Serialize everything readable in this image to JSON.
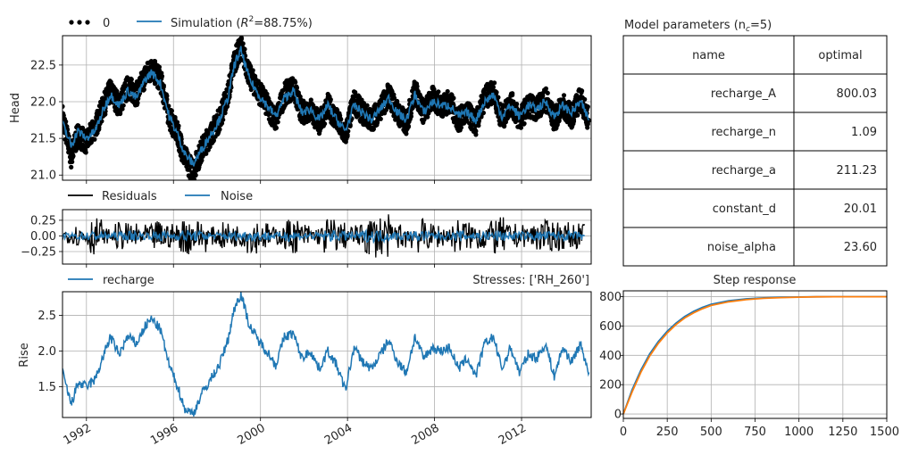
{
  "colors": {
    "observed": "#000000",
    "simulation": "#1f77b4",
    "residuals": "#000000",
    "noise": "#1f77b4",
    "recharge": "#1f77b4",
    "step_blue": "#1f77b4",
    "step_orange": "#ff7f0e",
    "grid": "#b0b0b0"
  },
  "params_table": {
    "title": "Model parameters (n",
    "title_sub": "c",
    "title_tail": "=5)",
    "header": [
      "name",
      "optimal"
    ],
    "rows": [
      [
        "recharge_A",
        "800.03"
      ],
      [
        "recharge_n",
        "1.09"
      ],
      [
        "recharge_a",
        "211.23"
      ],
      [
        "constant_d",
        "20.01"
      ],
      [
        "noise_alpha",
        "23.60"
      ]
    ]
  },
  "stresses_label": "Stresses: ['RH_260']",
  "chart_data": [
    {
      "id": "head",
      "type": "line",
      "xlabel": "",
      "ylabel": "Head",
      "xlim": [
        1990.9,
        2015.2
      ],
      "ylim": [
        20.93,
        22.9
      ],
      "yticks": [
        21.0,
        21.5,
        22.0,
        22.5
      ],
      "ytick_labels": [
        "21.0",
        "21.5",
        "22.0",
        "22.5"
      ],
      "grid": true,
      "legend": "top-left outside",
      "series": [
        {
          "name": "0",
          "style": "dots",
          "color": "#000000",
          "x": [
            1990.9,
            1991.3,
            1991.6,
            1992.0,
            1992.4,
            1992.8,
            1993.1,
            1993.5,
            1993.9,
            1994.3,
            1994.7,
            1995.0,
            1995.4,
            1995.8,
            1996.2,
            1996.5,
            1996.9,
            1997.3,
            1997.7,
            1998.1,
            1998.5,
            1998.8,
            1999.1,
            1999.5,
            1999.9,
            2000.3,
            2000.7,
            2001.1,
            2001.5,
            2001.9,
            2002.3,
            2002.7,
            2003.1,
            2003.5,
            2003.9,
            2004.3,
            2004.7,
            2005.1,
            2005.5,
            2005.9,
            2006.3,
            2006.7,
            2007.1,
            2007.5,
            2007.9,
            2008.3,
            2008.7,
            2009.1,
            2009.5,
            2009.9,
            2010.3,
            2010.7,
            2011.1,
            2011.5,
            2011.9,
            2012.3,
            2012.7,
            2013.1,
            2013.5,
            2013.9,
            2014.3,
            2014.7,
            2015.1
          ],
          "y": [
            21.8,
            21.25,
            21.55,
            21.45,
            21.65,
            21.95,
            22.15,
            21.95,
            22.2,
            22.1,
            22.35,
            22.45,
            22.3,
            21.8,
            21.55,
            21.25,
            21.05,
            21.35,
            21.55,
            21.75,
            22.1,
            22.55,
            22.75,
            22.35,
            22.15,
            21.95,
            21.75,
            22.1,
            22.2,
            21.85,
            21.9,
            21.7,
            21.95,
            21.75,
            21.55,
            22.0,
            21.85,
            21.75,
            21.9,
            22.1,
            21.85,
            21.7,
            22.15,
            21.85,
            22.05,
            21.95,
            22.0,
            21.75,
            21.85,
            21.7,
            22.05,
            22.15,
            21.75,
            22.0,
            21.75,
            21.95,
            21.9,
            22.05,
            21.75,
            21.95,
            21.8,
            22.05,
            21.75
          ]
        },
        {
          "name": "Simulation (R²=88.75%)",
          "style": "line",
          "color": "#1f77b4",
          "x": [
            1990.9,
            1991.3,
            1991.6,
            1992.0,
            1992.4,
            1992.8,
            1993.1,
            1993.5,
            1993.9,
            1994.3,
            1994.7,
            1995.0,
            1995.4,
            1995.8,
            1996.2,
            1996.5,
            1996.9,
            1997.3,
            1997.7,
            1998.1,
            1998.5,
            1998.8,
            1999.1,
            1999.5,
            1999.9,
            2000.3,
            2000.7,
            2001.1,
            2001.5,
            2001.9,
            2002.3,
            2002.7,
            2003.1,
            2003.5,
            2003.9,
            2004.3,
            2004.7,
            2005.1,
            2005.5,
            2005.9,
            2006.3,
            2006.7,
            2007.1,
            2007.5,
            2007.9,
            2008.3,
            2008.7,
            2009.1,
            2009.5,
            2009.9,
            2010.3,
            2010.7,
            2011.1,
            2011.5,
            2011.9,
            2012.3,
            2012.7,
            2013.1,
            2013.5,
            2013.9,
            2014.3,
            2014.7,
            2015.1
          ],
          "y": [
            21.7,
            21.4,
            21.6,
            21.5,
            21.6,
            21.9,
            22.1,
            21.95,
            22.15,
            22.05,
            22.3,
            22.4,
            22.25,
            21.8,
            21.55,
            21.3,
            21.15,
            21.35,
            21.55,
            21.75,
            22.05,
            22.5,
            22.7,
            22.3,
            22.1,
            21.95,
            21.8,
            22.05,
            22.15,
            21.85,
            21.9,
            21.75,
            21.95,
            21.75,
            21.6,
            21.95,
            21.85,
            21.75,
            21.9,
            22.05,
            21.85,
            21.75,
            22.1,
            21.85,
            22.0,
            21.95,
            21.95,
            21.8,
            21.85,
            21.75,
            22.0,
            22.1,
            21.8,
            21.95,
            21.8,
            21.95,
            21.9,
            22.0,
            21.8,
            21.95,
            21.85,
            22.0,
            21.75
          ]
        }
      ]
    },
    {
      "id": "residuals",
      "type": "line",
      "xlabel": "",
      "ylabel": "",
      "xlim": [
        1990.9,
        2015.2
      ],
      "ylim": [
        -0.45,
        0.42
      ],
      "yticks": [
        -0.25,
        0.0,
        0.25
      ],
      "ytick_labels": [
        "−0.25",
        "0.00",
        "0.25"
      ],
      "grid": true,
      "legend": "top-left outside",
      "series": [
        {
          "name": "Residuals",
          "color": "#000000",
          "x": [
            1990.9,
            1991.5,
            1992.1,
            1992.7,
            1993.3,
            1993.9,
            1994.5,
            1995.1,
            1995.7,
            1996.3,
            1996.9,
            1997.5,
            1998.1,
            1998.7,
            1999.3,
            1999.9,
            2000.5,
            2001.1,
            2001.7,
            2002.3,
            2002.9,
            2003.5,
            2004.1,
            2004.7,
            2005.3,
            2005.9,
            2006.5,
            2007.1,
            2007.7,
            2008.3,
            2008.9,
            2009.5,
            2010.1,
            2010.7,
            2011.3,
            2011.9,
            2012.5,
            2013.1,
            2013.7,
            2014.3,
            2014.9
          ],
          "y": [
            0.12,
            -0.18,
            0.3,
            -0.12,
            0.22,
            -0.2,
            0.18,
            -0.25,
            0.2,
            -0.3,
            0.26,
            -0.15,
            0.22,
            -0.18,
            0.28,
            -0.22,
            0.15,
            -0.28,
            0.2,
            -0.15,
            0.3,
            -0.22,
            0.18,
            -0.32,
            0.35,
            -0.2,
            0.22,
            -0.28,
            0.2,
            -0.18,
            0.28,
            -0.22,
            0.24,
            -0.3,
            0.2,
            -0.18,
            0.25,
            -0.25,
            0.22,
            -0.2,
            0.1
          ]
        },
        {
          "name": "Noise",
          "color": "#1f77b4",
          "x": [
            1990.9,
            1991.5,
            1992.1,
            1992.7,
            1993.3,
            1993.9,
            1994.5,
            1995.1,
            1995.7,
            1996.3,
            1996.9,
            1997.5,
            1998.1,
            1998.7,
            1999.3,
            1999.9,
            2000.5,
            2001.1,
            2001.7,
            2002.3,
            2002.9,
            2003.5,
            2004.1,
            2004.7,
            2005.3,
            2005.9,
            2006.5,
            2007.1,
            2007.7,
            2008.3,
            2008.9,
            2009.5,
            2010.1,
            2010.7,
            2011.3,
            2011.9,
            2012.5,
            2013.1,
            2013.7,
            2014.3,
            2014.9
          ],
          "y": [
            0.05,
            -0.07,
            0.08,
            -0.06,
            0.07,
            -0.08,
            0.06,
            -0.09,
            0.07,
            -0.1,
            0.08,
            -0.06,
            0.07,
            -0.07,
            0.09,
            -0.08,
            0.06,
            -0.09,
            0.07,
            -0.06,
            0.09,
            -0.08,
            0.07,
            -0.1,
            0.1,
            -0.07,
            0.08,
            -0.09,
            0.07,
            -0.06,
            0.09,
            -0.08,
            0.08,
            -0.09,
            0.07,
            -0.07,
            0.08,
            -0.08,
            0.08,
            -0.07,
            0.04
          ]
        }
      ]
    },
    {
      "id": "recharge",
      "type": "line",
      "xlabel": "",
      "ylabel": "Rise",
      "xlim": [
        1990.9,
        2015.2
      ],
      "ylim": [
        1.07,
        2.83
      ],
      "yticks": [
        1.5,
        2.0,
        2.5
      ],
      "ytick_labels": [
        "1.5",
        "2.0",
        "2.5"
      ],
      "xticks": [
        1992,
        1996,
        2000,
        2004,
        2008,
        2012
      ],
      "xtick_labels": [
        "1992",
        "1996",
        "2000",
        "2004",
        "2008",
        "2012"
      ],
      "grid": true,
      "legend": "top-left outside",
      "series": [
        {
          "name": "recharge",
          "color": "#1f77b4",
          "x": [
            1990.9,
            1991.3,
            1991.6,
            1992.0,
            1992.4,
            1992.8,
            1993.1,
            1993.5,
            1993.9,
            1994.3,
            1994.7,
            1995.0,
            1995.4,
            1995.8,
            1996.2,
            1996.5,
            1996.9,
            1997.3,
            1997.7,
            1998.1,
            1998.5,
            1998.8,
            1999.1,
            1999.5,
            1999.9,
            2000.3,
            2000.7,
            2001.1,
            2001.5,
            2001.9,
            2002.3,
            2002.7,
            2003.1,
            2003.5,
            2003.9,
            2004.3,
            2004.7,
            2005.1,
            2005.5,
            2005.9,
            2006.3,
            2006.7,
            2007.1,
            2007.5,
            2007.9,
            2008.3,
            2008.7,
            2009.1,
            2009.5,
            2009.9,
            2010.3,
            2010.7,
            2011.1,
            2011.5,
            2011.9,
            2012.3,
            2012.7,
            2013.1,
            2013.5,
            2013.9,
            2014.3,
            2014.7,
            2015.1
          ],
          "y": [
            1.7,
            1.25,
            1.55,
            1.5,
            1.6,
            1.95,
            2.2,
            1.95,
            2.2,
            2.1,
            2.35,
            2.45,
            2.3,
            1.8,
            1.5,
            1.2,
            1.12,
            1.4,
            1.6,
            1.8,
            2.15,
            2.6,
            2.8,
            2.35,
            2.15,
            2.0,
            1.8,
            2.2,
            2.25,
            1.9,
            2.0,
            1.75,
            2.0,
            1.8,
            1.45,
            2.05,
            1.85,
            1.75,
            1.95,
            2.15,
            1.85,
            1.7,
            2.2,
            1.9,
            2.05,
            2.0,
            2.05,
            1.75,
            1.9,
            1.65,
            2.1,
            2.2,
            1.75,
            2.05,
            1.7,
            1.95,
            1.9,
            2.1,
            1.65,
            2.05,
            1.85,
            2.1,
            1.7
          ]
        }
      ]
    },
    {
      "id": "step-response",
      "type": "line",
      "title": "Step response",
      "xlabel": "",
      "ylabel": "",
      "xlim": [
        0,
        1500
      ],
      "ylim": [
        -30,
        840
      ],
      "xticks": [
        0,
        250,
        500,
        750,
        1000,
        1250,
        1500
      ],
      "xtick_labels": [
        "0",
        "250",
        "500",
        "750",
        "1000",
        "1250",
        "1500"
      ],
      "yticks": [
        0,
        200,
        400,
        600,
        800
      ],
      "ytick_labels": [
        "0",
        "200",
        "400",
        "600",
        "800"
      ],
      "grid": true,
      "series": [
        {
          "color": "#1f77b4",
          "x": [
            0,
            50,
            100,
            150,
            200,
            250,
            300,
            350,
            400,
            450,
            500,
            600,
            700,
            800,
            900,
            1000,
            1100,
            1200,
            1300,
            1400,
            1500
          ],
          "y": [
            0,
            165,
            300,
            410,
            495,
            565,
            620,
            665,
            700,
            727,
            748,
            772,
            785,
            792,
            796,
            798,
            799,
            800,
            800,
            800,
            800
          ]
        },
        {
          "color": "#ff7f0e",
          "x": [
            0,
            50,
            100,
            150,
            200,
            250,
            300,
            350,
            400,
            450,
            500,
            600,
            700,
            800,
            900,
            1000,
            1100,
            1200,
            1300,
            1400,
            1500
          ],
          "y": [
            0,
            150,
            285,
            395,
            482,
            553,
            610,
            655,
            690,
            718,
            740,
            765,
            780,
            789,
            794,
            797,
            799,
            800,
            800,
            800,
            800
          ]
        }
      ]
    }
  ],
  "legend_head": {
    "obs_label": "0",
    "sim_label_pre": "Simulation (",
    "sim_label_r": "R",
    "sim_label_sup": "2",
    "sim_label_post": "=88.75%)"
  },
  "legend_resid": {
    "res_label": "Residuals",
    "noise_label": "Noise"
  },
  "legend_recharge": {
    "label": "recharge"
  }
}
